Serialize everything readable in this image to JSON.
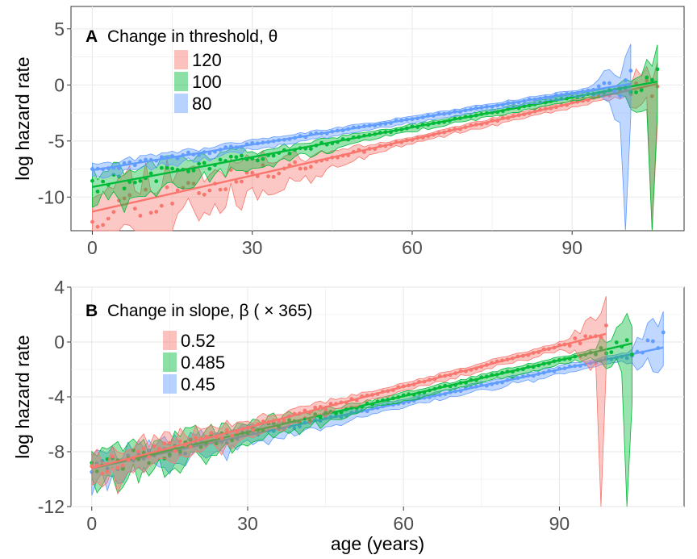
{
  "x_axis_label": "age (years)",
  "chart_data": [
    {
      "type": "line",
      "panel": "A",
      "title": "Change in threshold, θ",
      "title_letter": "A",
      "title_text": "Change in threshold, θ",
      "xlabel": "",
      "ylabel": "log hazard rate",
      "xlim": [
        -4,
        111
      ],
      "ylim": [
        -13,
        7
      ],
      "xticks": [
        0,
        30,
        60,
        90
      ],
      "yticks": [
        5,
        0,
        -5,
        -10
      ],
      "grid": true,
      "legend_position": "top-left",
      "series": [
        {
          "name": "120",
          "color": "#F8766D",
          "x_start": 0,
          "x_end": 106,
          "line_start": -11.3,
          "line_end": 0.1,
          "noise_young": 2.8
        },
        {
          "name": "100",
          "color": "#00BA38",
          "x_start": 0,
          "x_end": 106,
          "line_start": -9.1,
          "line_end": 0.3,
          "noise_young": 1.2
        },
        {
          "name": "80",
          "color": "#619CFF",
          "x_start": 0,
          "x_end": 101,
          "line_start": -7.6,
          "line_end": 0.1,
          "noise_young": 0.3
        }
      ]
    },
    {
      "type": "line",
      "panel": "B",
      "title": "Change in slope, β (×365)",
      "title_letter": "B",
      "title_text": "Change in slope, β ( × 365)",
      "xlabel": "age (years)",
      "ylabel": "log hazard rate",
      "xlim": [
        -4,
        114
      ],
      "ylim": [
        -12,
        4
      ],
      "xticks": [
        0,
        30,
        60,
        90
      ],
      "yticks": [
        4,
        0,
        -4,
        -8,
        -12
      ],
      "grid": true,
      "legend_position": "top-left",
      "series": [
        {
          "name": "0.52",
          "color": "#F8766D",
          "x_start": 0,
          "x_end": 99,
          "line_start": -9.2,
          "line_end": 0.6,
          "noise_young": 0.9
        },
        {
          "name": "0.485",
          "color": "#00BA38",
          "x_start": 0,
          "x_end": 104,
          "line_start": -9.2,
          "line_end": -0.1,
          "noise_young": 1.1
        },
        {
          "name": "0.45",
          "color": "#619CFF",
          "x_start": 0,
          "x_end": 110,
          "line_start": -9.2,
          "line_end": -0.4,
          "noise_young": 0.8
        }
      ]
    }
  ]
}
